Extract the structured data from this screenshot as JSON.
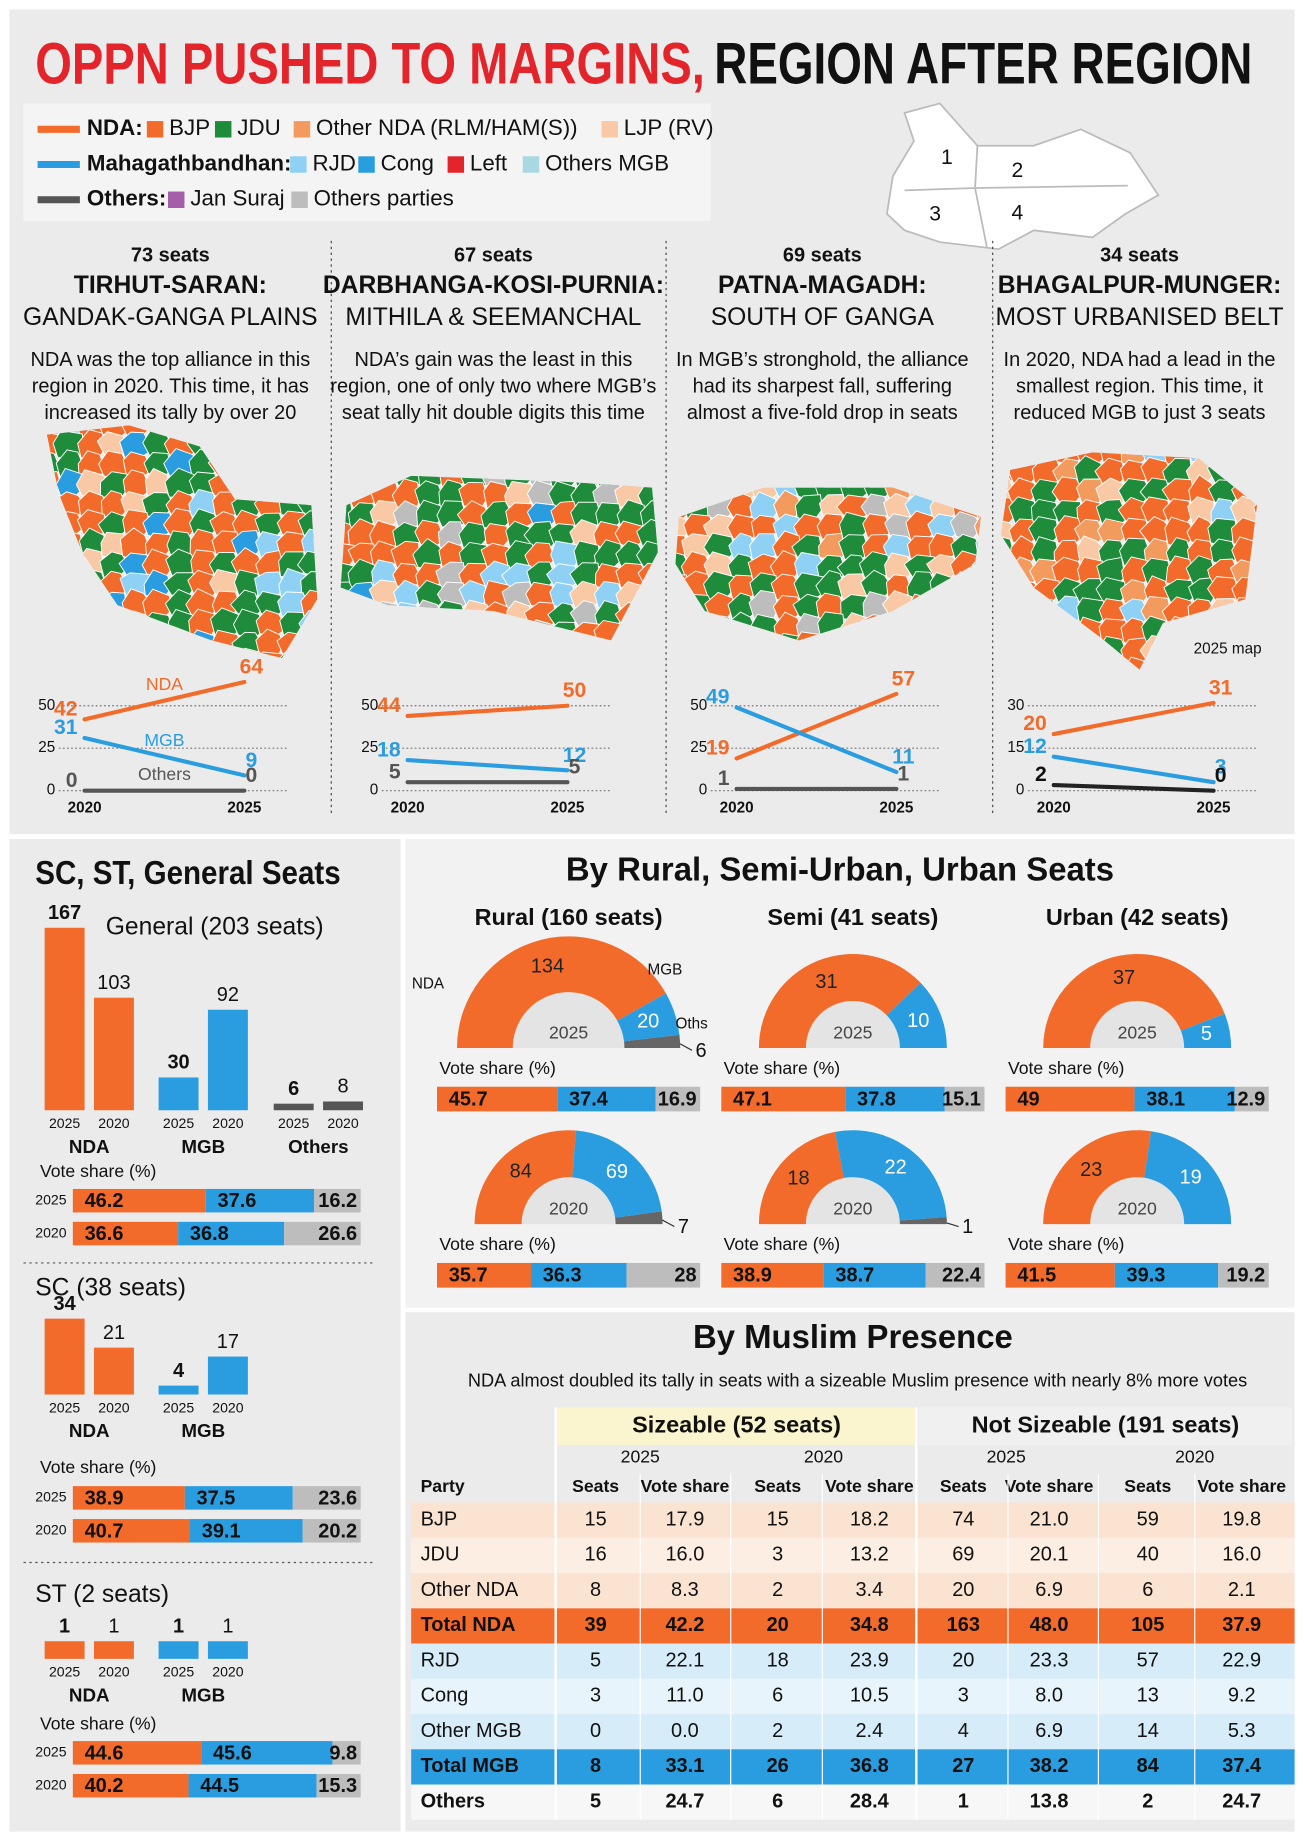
{
  "header": {
    "title_red": "OPPN PUSHED TO MARGINS,",
    "title_black": "REGION AFTER REGION"
  },
  "legend": [
    {
      "group": "NDA:",
      "color": "#f26b2a",
      "items": [
        {
          "name": "BJP",
          "color": "#f26b2a"
        },
        {
          "name": "JDU",
          "color": "#1e8c3a"
        },
        {
          "name": "Other NDA (RLM/HAM(S))",
          "color": "#f39a5e"
        },
        {
          "name": "LJP (RV)",
          "color": "#f8c9a4"
        }
      ]
    },
    {
      "group": "Mahagathbandhan:",
      "color": "#2a9de0",
      "items": [
        {
          "name": "RJD",
          "color": "#8fd0f5"
        },
        {
          "name": "Cong",
          "color": "#2a9de0"
        },
        {
          "name": "Left",
          "color": "#e3242b"
        },
        {
          "name": "Others MGB",
          "color": "#a8d8e2"
        }
      ]
    },
    {
      "group": "Others:",
      "color": "#555555",
      "items": [
        {
          "name": "Jan Suraj",
          "color": "#a65ea8"
        },
        {
          "name": "Others parties",
          "color": "#bdbdbd"
        }
      ]
    }
  ],
  "map_labels": [
    "1",
    "2",
    "3",
    "4"
  ],
  "map_note": "2025 map",
  "regions": [
    {
      "seats": "73 seats",
      "name": "TIRHUT-SARAN:",
      "sub": "GANDAK-GANGA PLAINS",
      "blurb": [
        "NDA was the top alliance in this",
        "region in 2020. This time, it has",
        "increased its tally by over 20"
      ],
      "chart": {
        "type": "line",
        "x": [
          "2020",
          "2025"
        ],
        "ylim": [
          0,
          65
        ],
        "yticks": [
          0,
          25,
          50
        ],
        "series": [
          {
            "name": "NDA",
            "color": "#f26b2a",
            "values": [
              42,
              64
            ]
          },
          {
            "name": "MGB",
            "color": "#2a9de0",
            "values": [
              31,
              9
            ]
          },
          {
            "name": "Others",
            "color": "#555555",
            "values": [
              0,
              0
            ]
          }
        ]
      }
    },
    {
      "seats": "67 seats",
      "name": "DARBHANGA-KOSI-PURNIA:",
      "sub": "MITHILA & SEEMANCHAL",
      "blurb": [
        "NDA’s gain was the least in this",
        "region, one of only two where MGB’s",
        "seat tally hit double digits this time"
      ],
      "chart": {
        "type": "line",
        "x": [
          "2020",
          "2025"
        ],
        "ylim": [
          0,
          65
        ],
        "yticks": [
          0,
          25,
          50
        ],
        "series": [
          {
            "color": "#f26b2a",
            "values": [
              44,
              50
            ]
          },
          {
            "color": "#2a9de0",
            "values": [
              18,
              12
            ]
          },
          {
            "color": "#555555",
            "values": [
              5,
              5
            ]
          }
        ]
      }
    },
    {
      "seats": "69 seats",
      "name": "PATNA-MAGADH:",
      "sub": "SOUTH OF GANGA",
      "blurb": [
        "In MGB’s stronghold, the alliance",
        "had its sharpest fall, suffering",
        "almost a five-fold drop in seats"
      ],
      "chart": {
        "type": "line",
        "x": [
          "2020",
          "2025"
        ],
        "ylim": [
          0,
          65
        ],
        "yticks": [
          0,
          25,
          50
        ],
        "series": [
          {
            "color": "#f26b2a",
            "values": [
              19,
              57
            ]
          },
          {
            "color": "#2a9de0",
            "values": [
              49,
              11
            ]
          },
          {
            "color": "#555555",
            "values": [
              1,
              1
            ]
          }
        ]
      }
    },
    {
      "seats": "34 seats",
      "name": "BHAGALPUR-MUNGER:",
      "sub": "MOST URBANISED BELT",
      "blurb": [
        "In 2020, NDA had a lead in the",
        "smallest region. This time, it",
        "reduced MGB to just 3 seats"
      ],
      "chart": {
        "type": "line",
        "x": [
          "2020",
          "2025"
        ],
        "ylim": [
          0,
          39
        ],
        "yticks": [
          0,
          15,
          30
        ],
        "series": [
          {
            "color": "#f26b2a",
            "values": [
              20,
              31
            ]
          },
          {
            "color": "#2a9de0",
            "values": [
              12,
              3
            ]
          },
          {
            "color": "#222222",
            "values": [
              2,
              0
            ]
          }
        ]
      }
    }
  ],
  "vote_share_label": "Vote share (%)",
  "vote_colors": [
    "#f26b2a",
    "#2a9de0",
    "#bdbdbd"
  ],
  "seat_split": {
    "title": "SC, ST, General Seats",
    "years": [
      "2025",
      "2020"
    ],
    "sections": [
      {
        "type": "bar",
        "title": "General (203 seats)",
        "groups": [
          {
            "name": "NDA",
            "color": "#f26b2a",
            "values": [
              167,
              103
            ]
          },
          {
            "name": "MGB",
            "color": "#2a9de0",
            "values": [
              30,
              92
            ]
          },
          {
            "name": "Others",
            "color": "#555555",
            "values": [
              6,
              8
            ]
          }
        ],
        "vote_share": [
          {
            "year": "2025",
            "values": [
              46.2,
              37.6,
              16.2
            ]
          },
          {
            "year": "2020",
            "values": [
              36.6,
              36.8,
              26.6
            ]
          }
        ]
      },
      {
        "type": "bar",
        "title": "SC (38 seats)",
        "groups": [
          {
            "name": "NDA",
            "color": "#f26b2a",
            "values": [
              34,
              21
            ]
          },
          {
            "name": "MGB",
            "color": "#2a9de0",
            "values": [
              4,
              17
            ]
          }
        ],
        "vote_share": [
          {
            "year": "2025",
            "values": [
              38.9,
              37.5,
              23.6
            ]
          },
          {
            "year": "2020",
            "values": [
              40.7,
              39.1,
              20.2
            ]
          }
        ]
      },
      {
        "type": "bar",
        "title": "ST (2 seats)",
        "groups": [
          {
            "name": "NDA",
            "color": "#f26b2a",
            "values": [
              1,
              1
            ]
          },
          {
            "name": "MGB",
            "color": "#2a9de0",
            "values": [
              1,
              1
            ]
          }
        ],
        "vote_share": [
          {
            "year": "2025",
            "values": [
              44.6,
              45.6,
              9.8
            ]
          },
          {
            "year": "2020",
            "values": [
              40.2,
              44.5,
              15.3
            ]
          }
        ]
      }
    ]
  },
  "area_split": {
    "title": "By Rural, Semi-Urban, Urban Seats",
    "colors": [
      "#f26b2a",
      "#2a9de0",
      "#666666"
    ],
    "groups": [
      {
        "title": "Rural (160 seats)",
        "donuts": [
          {
            "type": "half-donut",
            "year": "2025",
            "names": [
              "NDA",
              "MGB",
              "Oths"
            ],
            "values": [
              134,
              20,
              6
            ],
            "vote_share": [
              45.7,
              37.4,
              16.9
            ]
          },
          {
            "type": "half-donut",
            "year": "2020",
            "values": [
              84,
              69,
              7
            ],
            "vote_share": [
              35.7,
              36.3,
              28
            ]
          }
        ]
      },
      {
        "title": "Semi (41 seats)",
        "donuts": [
          {
            "type": "half-donut",
            "year": "2025",
            "values": [
              31,
              10
            ],
            "vote_share": [
              47.1,
              37.8,
              15.1
            ]
          },
          {
            "type": "half-donut",
            "year": "2020",
            "values": [
              18,
              22,
              1
            ],
            "vote_share": [
              38.9,
              38.7,
              22.4
            ]
          }
        ]
      },
      {
        "title": "Urban (42 seats)",
        "donuts": [
          {
            "type": "half-donut",
            "year": "2025",
            "values": [
              37,
              5
            ],
            "vote_share": [
              49,
              38.1,
              12.9
            ]
          },
          {
            "type": "half-donut",
            "year": "2020",
            "values": [
              23,
              19
            ],
            "vote_share": [
              41.5,
              39.3,
              19.2
            ]
          }
        ]
      }
    ]
  },
  "muslim": {
    "title": "By Muslim Presence",
    "subtitle": "NDA almost doubled its tally in seats with a sizeable Muslim presence with nearly 8% more votes",
    "groups": [
      "Sizeable (52 seats)",
      "Not Sizeable (191 seats)"
    ],
    "years": [
      "2025",
      "2020",
      "2025",
      "2020"
    ],
    "columns": [
      "Party",
      "Seats",
      "Vote share",
      "Seats",
      "Vote share",
      "Seats",
      "Vote share",
      "Seats",
      "Vote share"
    ],
    "rows": [
      [
        "BJP",
        "15",
        "17.9",
        "15",
        "18.2",
        "74",
        "21.0",
        "59",
        "19.8"
      ],
      [
        "JDU",
        "16",
        "16.0",
        "3",
        "13.2",
        "69",
        "20.1",
        "40",
        "16.0"
      ],
      [
        "Other NDA",
        "8",
        "8.3",
        "2",
        "3.4",
        "20",
        "6.9",
        "6",
        "2.1"
      ],
      [
        "Total NDA",
        "39",
        "42.2",
        "20",
        "34.8",
        "163",
        "48.0",
        "105",
        "37.9"
      ],
      [
        "RJD",
        "5",
        "22.1",
        "18",
        "23.9",
        "20",
        "23.3",
        "57",
        "22.9"
      ],
      [
        "Cong",
        "3",
        "11.0",
        "6",
        "10.5",
        "3",
        "8.0",
        "13",
        "9.2"
      ],
      [
        "Other MGB",
        "0",
        "0.0",
        "2",
        "2.4",
        "4",
        "6.9",
        "14",
        "5.3"
      ],
      [
        "Total MGB",
        "8",
        "33.1",
        "26",
        "36.8",
        "27",
        "38.2",
        "84",
        "37.4"
      ],
      [
        "Others",
        "5",
        "24.7",
        "6",
        "28.4",
        "1",
        "13.8",
        "2",
        "24.7"
      ]
    ]
  }
}
